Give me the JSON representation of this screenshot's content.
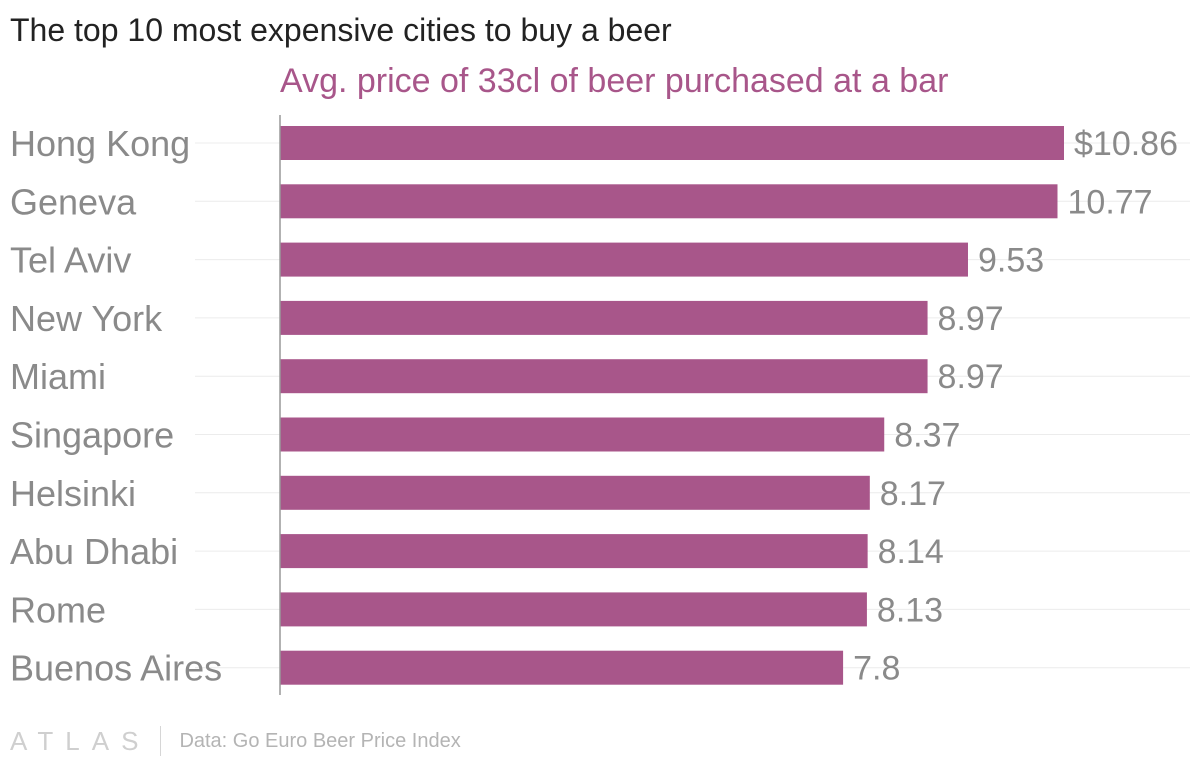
{
  "title": "The top 10 most expensive cities to buy a beer",
  "chart_data": {
    "type": "bar",
    "orientation": "horizontal",
    "title": "The top 10 most expensive cities to buy a beer",
    "subtitle": "Avg. price of 33cl of beer purchased at a bar",
    "categories": [
      "Hong Kong",
      "Geneva",
      "Tel Aviv",
      "New York",
      "Miami",
      "Singapore",
      "Helsinki",
      "Abu Dhabi",
      "Rome",
      "Buenos Aires"
    ],
    "values": [
      10.86,
      10.77,
      9.53,
      8.97,
      8.97,
      8.37,
      8.17,
      8.14,
      8.13,
      7.8
    ],
    "value_labels": [
      "$10.86",
      "10.77",
      "9.53",
      "8.97",
      "8.97",
      "8.37",
      "8.17",
      "8.14",
      "8.13",
      "7.8"
    ],
    "xlabel": "",
    "ylabel": "",
    "xlim": [
      0,
      10.86
    ],
    "bar_color": "#a8568a"
  },
  "footer": {
    "logo": "ATLAS",
    "source": "Data: Go Euro Beer Price Index"
  }
}
